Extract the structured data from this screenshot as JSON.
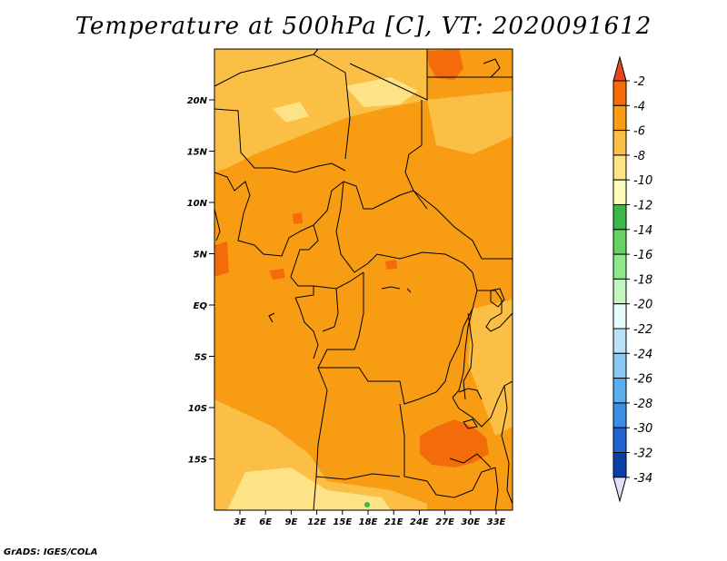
{
  "title": "Temperature at 500hPa [C], VT: 2020091612",
  "credit": "GrADS: IGES/COLA",
  "axes": {
    "lat_labels": [
      "20N",
      "15N",
      "10N",
      "5N",
      "EQ",
      "5S",
      "10S",
      "15S"
    ],
    "lon_labels": [
      "3E",
      "6E",
      "9E",
      "12E",
      "15E",
      "18E",
      "21E",
      "24E",
      "27E",
      "30E",
      "33E"
    ]
  },
  "colorbar": {
    "levels": [
      "-2",
      "-4",
      "-6",
      "-8",
      "-10",
      "-12",
      "-14",
      "-16",
      "-18",
      "-20",
      "-22",
      "-24",
      "-26",
      "-28",
      "-30",
      "-32",
      "-34"
    ],
    "colors": [
      "#e8471b",
      "#f46c0a",
      "#f89d13",
      "#fbbf46",
      "#fee286",
      "#fffcb7",
      "#3ab84a",
      "#63d362",
      "#8fe88d",
      "#c3f5c1",
      "#e8fbfc",
      "#b8e1f9",
      "#8ccaf4",
      "#5aaeee",
      "#3a8ee4",
      "#1f64cf",
      "#0c3ea8",
      "#0a1f72"
    ]
  },
  "field": {
    "dominant_range": "-4 to -6",
    "dominant_color": "#f89d13"
  }
}
